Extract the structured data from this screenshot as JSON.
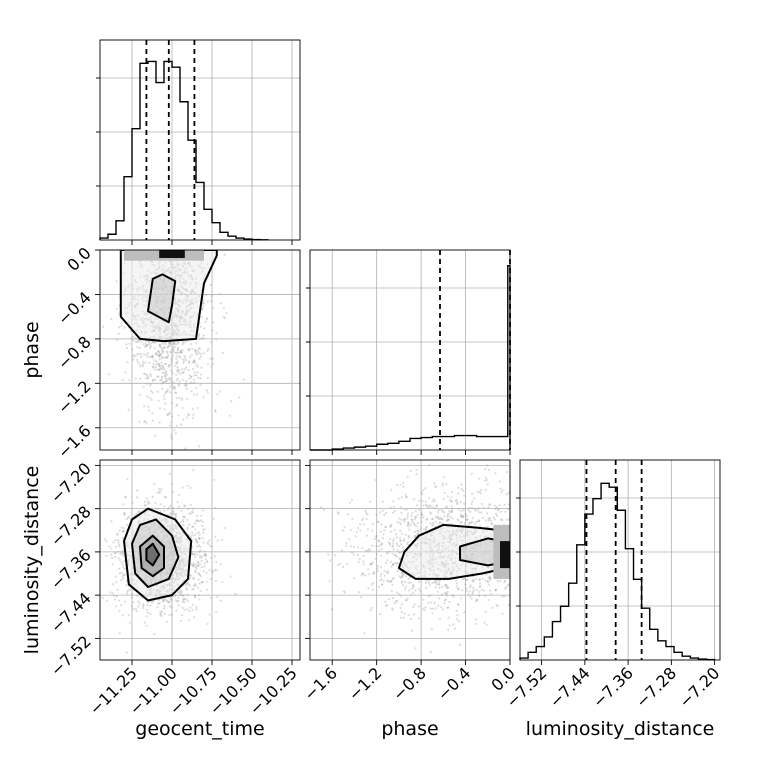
{
  "chart_data": {
    "type": "corner",
    "title": "",
    "grid": true,
    "parameters": [
      {
        "name": "geocent_time",
        "range": [
          -11.45,
          -10.2
        ],
        "ticks": [
          -11.25,
          -11.0,
          -10.75,
          -10.5,
          -10.25
        ],
        "tick_labels": [
          "−11.25",
          "−11.00",
          "−10.75",
          "−10.50",
          "−10.25"
        ]
      },
      {
        "name": "phase",
        "range": [
          -1.8,
          0.0
        ],
        "ticks": [
          -1.6,
          -1.2,
          -0.8,
          -0.4,
          0.0
        ],
        "tick_labels": [
          "−1.6",
          "−1.2",
          "−0.8",
          "−0.4",
          "0.0"
        ]
      },
      {
        "name": "luminosity_distance",
        "range": [
          -7.56,
          -7.19
        ],
        "ticks": [
          -7.52,
          -7.44,
          -7.36,
          -7.28,
          -7.2
        ],
        "tick_labels": [
          "−7.52",
          "−7.44",
          "−7.36",
          "−7.28",
          "−7.20"
        ]
      }
    ],
    "marginals": [
      {
        "parameter": "geocent_time",
        "bin_edges": [
          -11.45,
          -11.4,
          -11.35,
          -11.3,
          -11.25,
          -11.2,
          -11.15,
          -11.1,
          -11.05,
          -11.0,
          -10.95,
          -10.9,
          -10.85,
          -10.8,
          -10.75,
          -10.7,
          -10.65,
          -10.6,
          -10.55,
          -10.5,
          -10.45,
          -10.4
        ],
        "counts": [
          0.01,
          0.03,
          0.1,
          0.33,
          0.58,
          0.92,
          0.93,
          0.82,
          0.93,
          0.9,
          0.72,
          0.52,
          0.3,
          0.16,
          0.09,
          0.04,
          0.02,
          0.01,
          0.005,
          0.002,
          0.001
        ],
        "quantiles": [
          -11.16,
          -11.02,
          -10.86
        ]
      },
      {
        "parameter": "phase",
        "bin_edges": [
          -1.8,
          -1.7,
          -1.6,
          -1.5,
          -1.4,
          -1.3,
          -1.2,
          -1.1,
          -1.0,
          -0.9,
          -0.8,
          -0.7,
          -0.6,
          -0.5,
          -0.4,
          -0.3,
          -0.2,
          -0.1,
          -0.02,
          0.0
        ],
        "counts": [
          0.0,
          0.0,
          0.005,
          0.01,
          0.015,
          0.02,
          0.03,
          0.035,
          0.045,
          0.06,
          0.065,
          0.07,
          0.07,
          0.075,
          0.075,
          0.07,
          0.07,
          0.07,
          0.96
        ],
        "quantiles": [
          -0.63,
          0.0
        ]
      },
      {
        "parameter": "luminosity_distance",
        "bin_edges": [
          -7.56,
          -7.545,
          -7.53,
          -7.515,
          -7.5,
          -7.485,
          -7.47,
          -7.455,
          -7.44,
          -7.425,
          -7.41,
          -7.395,
          -7.38,
          -7.365,
          -7.35,
          -7.335,
          -7.32,
          -7.305,
          -7.29,
          -7.275,
          -7.26,
          -7.245,
          -7.23,
          -7.215,
          -7.2
        ],
        "counts": [
          0.01,
          0.04,
          0.07,
          0.12,
          0.2,
          0.28,
          0.4,
          0.6,
          0.76,
          0.84,
          0.92,
          0.9,
          0.78,
          0.58,
          0.42,
          0.27,
          0.16,
          0.1,
          0.07,
          0.04,
          0.02,
          0.01,
          0.005,
          0.002
        ],
        "quantiles": [
          -7.437,
          -7.383,
          -7.335
        ]
      }
    ],
    "joint": [
      {
        "x": "geocent_time",
        "y": "phase",
        "center": [
          -11.02,
          -0.55
        ],
        "spread": [
          0.13,
          0.45
        ],
        "contours": [
          {
            "level": 1,
            "points": [
              [
                -11.32,
                0.0
              ],
              [
                -11.32,
                -0.6
              ],
              [
                -11.2,
                -0.8
              ],
              [
                -11.05,
                -0.82
              ],
              [
                -10.85,
                -0.8
              ],
              [
                -10.8,
                -0.3
              ],
              [
                -10.72,
                -0.05
              ],
              [
                -10.72,
                0.0
              ]
            ]
          },
          {
            "level": 2,
            "points": [
              [
                -11.12,
                -0.26
              ],
              [
                -11.15,
                -0.55
              ],
              [
                -11.02,
                -0.65
              ],
              [
                -11.0,
                -0.5
              ],
              [
                -10.98,
                -0.28
              ],
              [
                -11.06,
                -0.22
              ]
            ]
          }
        ],
        "density_strip": {
          "y": -0.03,
          "x_from": -11.3,
          "x_to": -10.8
        }
      },
      {
        "x": "geocent_time",
        "y": "luminosity_distance",
        "center": [
          -11.06,
          -7.37
        ],
        "spread": [
          0.14,
          0.05
        ],
        "contours": [
          {
            "level": 1,
            "points": [
              [
                -11.3,
                -7.34
              ],
              [
                -11.25,
                -7.3
              ],
              [
                -11.15,
                -7.28
              ],
              [
                -10.98,
                -7.3
              ],
              [
                -10.88,
                -7.34
              ],
              [
                -10.9,
                -7.41
              ],
              [
                -11.0,
                -7.44
              ],
              [
                -11.15,
                -7.45
              ],
              [
                -11.27,
                -7.42
              ]
            ]
          },
          {
            "level": 2,
            "points": [
              [
                -11.25,
                -7.345
              ],
              [
                -11.2,
                -7.31
              ],
              [
                -11.1,
                -7.3
              ],
              [
                -11.0,
                -7.33
              ],
              [
                -10.96,
                -7.37
              ],
              [
                -11.02,
                -7.41
              ],
              [
                -11.15,
                -7.425
              ],
              [
                -11.23,
                -7.4
              ]
            ]
          },
          {
            "level": 3,
            "points": [
              [
                -11.2,
                -7.35
              ],
              [
                -11.12,
                -7.33
              ],
              [
                -11.05,
                -7.35
              ],
              [
                -11.05,
                -7.39
              ],
              [
                -11.12,
                -7.405
              ],
              [
                -11.19,
                -7.39
              ]
            ]
          },
          {
            "level": 4,
            "points": [
              [
                -11.16,
                -7.355
              ],
              [
                -11.12,
                -7.345
              ],
              [
                -11.08,
                -7.365
              ],
              [
                -11.12,
                -7.385
              ],
              [
                -11.16,
                -7.375
              ]
            ]
          }
        ]
      },
      {
        "x": "phase",
        "y": "luminosity_distance",
        "center": [
          -0.55,
          -7.36
        ],
        "spread": [
          0.42,
          0.06
        ],
        "contours": [
          {
            "level": 1,
            "points": [
              [
                -0.82,
                -7.33
              ],
              [
                -0.6,
                -7.31
              ],
              [
                -0.3,
                -7.315
              ],
              [
                -0.08,
                -7.32
              ],
              [
                -0.04,
                -7.32
              ],
              [
                -0.04,
                -7.39
              ],
              [
                -0.25,
                -7.4
              ],
              [
                -0.55,
                -7.41
              ],
              [
                -0.85,
                -7.41
              ],
              [
                -1.0,
                -7.39
              ],
              [
                -0.95,
                -7.36
              ]
            ]
          },
          {
            "level": 2,
            "points": [
              [
                -0.45,
                -7.35
              ],
              [
                -0.2,
                -7.335
              ],
              [
                -0.06,
                -7.34
              ],
              [
                -0.06,
                -7.38
              ],
              [
                -0.2,
                -7.385
              ],
              [
                -0.45,
                -7.375
              ]
            ]
          }
        ],
        "density_strip": {
          "x": -0.03,
          "y_from": -7.41,
          "y_to": -7.31
        }
      }
    ]
  }
}
